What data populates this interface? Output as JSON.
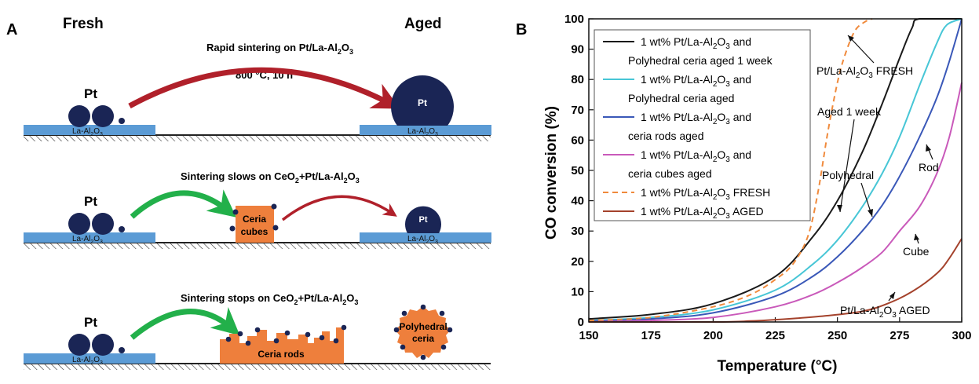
{
  "panel_a": {
    "label": "A",
    "fresh_heading": "Fresh",
    "aged_heading": "Aged",
    "row1": {
      "caption": "Rapid sintering on Pt/La-Al",
      "caption_sub": "2",
      "caption_mid": "O",
      "caption_sub2": "3",
      "condition": "800 °C, 10 h"
    },
    "row2": {
      "caption": "Sintering slows on CeO",
      "caption_sub": "2",
      "caption_mid": "+Pt/La-Al",
      "caption_sub2": "2",
      "caption_end": "O",
      "caption_sub3": "3",
      "ceria_line1": "Ceria",
      "ceria_line2": "cubes"
    },
    "row3": {
      "caption": "Sintering stops on CeO",
      "caption_sub": "2",
      "caption_mid": "+Pt/La-Al",
      "caption_sub2": "2",
      "caption_end": "O",
      "caption_sub3": "3",
      "ceria_label": "Ceria rods",
      "poly_line1": "Polyhedral",
      "poly_line2": "ceria"
    },
    "pt_label": "Pt",
    "support_label": "La-Al",
    "support_sub": "2",
    "support_mid": "O",
    "support_sub2": "3",
    "colors": {
      "support": "#5b9bd5",
      "particle": "#1a2555",
      "red_arrow": "#b0202a",
      "green_arrow": "#22b04a",
      "ceria": "#ee7f3c"
    }
  },
  "panel_b": {
    "label": "B",
    "chart_data": {
      "type": "line",
      "xlabel": "Temperature (°C)",
      "ylabel": "CO conversion (%)",
      "xlim": [
        150,
        300
      ],
      "ylim": [
        0,
        100
      ],
      "xticks": [
        150,
        175,
        200,
        225,
        250,
        275,
        300
      ],
      "yticks": [
        0,
        10,
        20,
        30,
        40,
        50,
        60,
        70,
        80,
        90,
        100
      ],
      "grid": false,
      "legend_position": "top-left",
      "series": [
        {
          "name": "1 wt% Pt/La-Al2O3 and Polyhedral ceria aged 1 week",
          "legend_line1": "1 wt% Pt/La-Al",
          "legend_line1_sub": "2",
          "legend_line1_mid": "O",
          "legend_line1_sub2": "3",
          "legend_line1_end": " and",
          "legend_line2": "Polyhedral ceria aged 1 week",
          "color": "#1a1a1a",
          "dash": "none",
          "x": [
            150,
            175,
            200,
            225,
            240,
            250,
            260,
            268,
            275,
            280,
            283,
            300
          ],
          "y": [
            1,
            2.5,
            6,
            15,
            28,
            40,
            56,
            72,
            87,
            97,
            100,
            100
          ]
        },
        {
          "name": "1 wt% Pt/La-Al2O3 and Polyhedral ceria aged",
          "legend_line1": "1 wt% Pt/La-Al",
          "legend_line1_sub": "2",
          "legend_line1_mid": "O",
          "legend_line1_sub2": "3",
          "legend_line1_end": " and",
          "legend_line2": "Polyhedral ceria aged",
          "color": "#47c6d6",
          "dash": "none",
          "x": [
            150,
            175,
            200,
            225,
            240,
            250,
            260,
            268,
            275,
            283,
            290,
            294,
            300
          ],
          "y": [
            0.5,
            1.5,
            4,
            10.5,
            19,
            27,
            38,
            49,
            61,
            78,
            92,
            98,
            100
          ]
        },
        {
          "name": "1 wt% Pt/La-Al2O3 and ceria rods aged",
          "legend_line1": "1 wt% Pt/La-Al",
          "legend_line1_sub": "2",
          "legend_line1_mid": "O",
          "legend_line1_sub2": "3",
          "legend_line1_end": " and",
          "legend_line2": "ceria rods aged",
          "color": "#3a58b8",
          "dash": "none",
          "x": [
            150,
            175,
            200,
            225,
            240,
            250,
            260,
            268,
            275,
            283,
            290,
            295,
            300
          ],
          "y": [
            0.3,
            1,
            3,
            8.5,
            15,
            21.5,
            30,
            38.5,
            48,
            61,
            74,
            86,
            100
          ]
        },
        {
          "name": "1 wt% Pt/La-Al2O3 and ceria cubes aged",
          "legend_line1": "1 wt% Pt/La-Al",
          "legend_line1_sub": "2",
          "legend_line1_mid": "O",
          "legend_line1_sub2": "3",
          "legend_line1_end": " and",
          "legend_line2": "ceria cubes aged",
          "color": "#c959ba",
          "dash": "none",
          "x": [
            150,
            175,
            200,
            225,
            240,
            250,
            260,
            268,
            275,
            283,
            290,
            295,
            300
          ],
          "y": [
            0,
            0.5,
            1.5,
            5,
            9,
            13,
            18,
            23,
            30,
            38,
            49,
            61,
            79
          ]
        },
        {
          "name": "1 wt% Pt/La-Al2O3 FRESH",
          "legend_line1": "1 wt% Pt/La-Al",
          "legend_line1_sub": "2",
          "legend_line1_mid": "O",
          "legend_line1_sub2": "3",
          "legend_line1_end": " FRESH",
          "legend_line2": "",
          "color": "#f08a3c",
          "dash": "7,5",
          "x": [
            150,
            175,
            200,
            215,
            225,
            232,
            238,
            242,
            246,
            250,
            253,
            257,
            261,
            264
          ],
          "y": [
            0.5,
            1.5,
            5,
            9,
            14,
            19,
            28,
            42,
            62,
            79,
            88,
            96,
            99,
            100
          ]
        },
        {
          "name": "1 wt% Pt/La-Al2O3 AGED",
          "legend_line1": "1 wt% Pt/La-Al",
          "legend_line1_sub": "2",
          "legend_line1_mid": "O",
          "legend_line1_sub2": "3",
          "legend_line1_end": " AGED",
          "legend_line2": "",
          "color": "#a4422c",
          "dash": "none",
          "x": [
            150,
            200,
            215,
            230,
            245,
            260,
            270,
            280,
            290,
            295,
            300
          ],
          "y": [
            0,
            0,
            0.3,
            1,
            2,
            3.5,
            6,
            10,
            16,
            21,
            27.5
          ]
        }
      ],
      "annotations": [
        {
          "text": "Pt/La-Al",
          "sub": "2",
          "mid": "O",
          "sub2": "3",
          "end": " FRESH"
        },
        {
          "text": "Aged 1 week"
        },
        {
          "text": "Polyhedral"
        },
        {
          "text": "Rod"
        },
        {
          "text": "Cube"
        },
        {
          "text": "Pt/La-Al",
          "sub": "2",
          "mid": "O",
          "sub2": "3",
          "end": " AGED"
        }
      ]
    }
  }
}
